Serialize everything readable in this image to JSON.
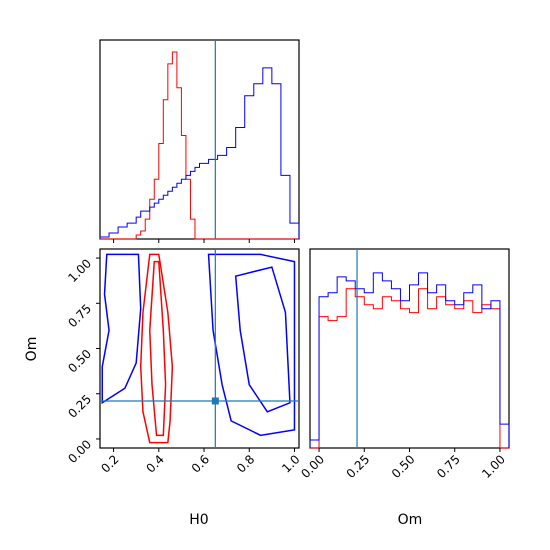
{
  "chart_data": {
    "type": "corner",
    "parameters": [
      "H0",
      "Om"
    ],
    "truths": {
      "H0": 0.65,
      "Om": 0.21
    },
    "colors": {
      "series_a": "#ff0000",
      "series_b": "#0000ff",
      "truth": "#1f77b4"
    },
    "ranges": {
      "H0": [
        0.14,
        1.02
      ],
      "Om": [
        -0.05,
        1.05
      ]
    },
    "ticks": {
      "H0": [
        "0.2",
        "0.4",
        "0.6",
        "0.8",
        "1.0"
      ],
      "Om": [
        "0.00",
        "0.25",
        "0.50",
        "0.75",
        "1.00"
      ]
    },
    "hist_H0": {
      "edges": [
        0.14,
        0.18,
        0.22,
        0.26,
        0.3,
        0.32,
        0.34,
        0.36,
        0.38,
        0.4,
        0.42,
        0.44,
        0.46,
        0.48,
        0.5,
        0.52,
        0.54,
        0.56,
        0.58,
        0.62,
        0.66,
        0.7,
        0.74,
        0.78,
        0.82,
        0.86,
        0.9,
        0.94,
        0.98,
        1.02
      ],
      "red": [
        0,
        0,
        0,
        0,
        0.02,
        0.04,
        0.1,
        0.2,
        0.3,
        0.48,
        0.7,
        0.88,
        0.94,
        0.76,
        0.52,
        0.3,
        0.1,
        0,
        0,
        0,
        0,
        0,
        0,
        0,
        0,
        0,
        0,
        0,
        0
      ],
      "blue": [
        0.01,
        0.03,
        0.06,
        0.08,
        0.11,
        0.14,
        0.14,
        0.16,
        0.18,
        0.2,
        0.22,
        0.24,
        0.26,
        0.28,
        0.3,
        0.32,
        0.34,
        0.36,
        0.38,
        0.4,
        0.42,
        0.46,
        0.56,
        0.72,
        0.78,
        0.86,
        0.78,
        0.32,
        0.08
      ]
    },
    "hist_Om": {
      "edges": [
        -0.05,
        0.0,
        0.05,
        0.1,
        0.15,
        0.2,
        0.25,
        0.3,
        0.35,
        0.4,
        0.45,
        0.5,
        0.55,
        0.6,
        0.65,
        0.7,
        0.75,
        0.8,
        0.85,
        0.9,
        0.95,
        1.0,
        1.05
      ],
      "red": [
        0,
        0.66,
        0.64,
        0.66,
        0.8,
        0.76,
        0.72,
        0.7,
        0.76,
        0.74,
        0.7,
        0.68,
        0.8,
        0.7,
        0.76,
        0.72,
        0.7,
        0.74,
        0.68,
        0.72,
        0.7,
        0.0
      ],
      "blue": [
        0.04,
        0.76,
        0.78,
        0.86,
        0.84,
        0.8,
        0.78,
        0.88,
        0.84,
        0.8,
        0.74,
        0.82,
        0.88,
        0.78,
        0.82,
        0.74,
        0.72,
        0.78,
        0.82,
        0.7,
        0.74,
        0.12
      ]
    },
    "contours": {
      "red": [
        [
          [
            0.36,
            -0.02
          ],
          [
            0.33,
            0.15
          ],
          [
            0.32,
            0.4
          ],
          [
            0.33,
            0.7
          ],
          [
            0.36,
            1.02
          ],
          [
            0.4,
            1.02
          ],
          [
            0.44,
            0.7
          ],
          [
            0.46,
            0.4
          ],
          [
            0.45,
            0.1
          ],
          [
            0.44,
            -0.02
          ]
        ],
        [
          [
            0.39,
            0.02
          ],
          [
            0.37,
            0.3
          ],
          [
            0.36,
            0.6
          ],
          [
            0.38,
            0.98
          ],
          [
            0.4,
            0.98
          ],
          [
            0.42,
            0.6
          ],
          [
            0.43,
            0.3
          ],
          [
            0.42,
            0.02
          ]
        ]
      ],
      "blue": [
        [
          [
            0.15,
            0.2
          ],
          [
            0.25,
            0.28
          ],
          [
            0.3,
            0.42
          ],
          [
            0.32,
            0.72
          ],
          [
            0.31,
            1.02
          ],
          [
            0.17,
            1.02
          ],
          [
            0.16,
            0.8
          ],
          [
            0.18,
            0.6
          ],
          [
            0.15,
            0.4
          ]
        ],
        [
          [
            0.62,
            1.02
          ],
          [
            0.64,
            0.6
          ],
          [
            0.68,
            0.3
          ],
          [
            0.72,
            0.1
          ],
          [
            0.85,
            0.02
          ],
          [
            1.0,
            0.05
          ],
          [
            1.0,
            0.98
          ],
          [
            0.85,
            1.02
          ]
        ],
        [
          [
            0.74,
            0.9
          ],
          [
            0.76,
            0.6
          ],
          [
            0.8,
            0.3
          ],
          [
            0.88,
            0.15
          ],
          [
            0.98,
            0.2
          ],
          [
            0.96,
            0.7
          ],
          [
            0.9,
            0.95
          ]
        ]
      ]
    }
  }
}
